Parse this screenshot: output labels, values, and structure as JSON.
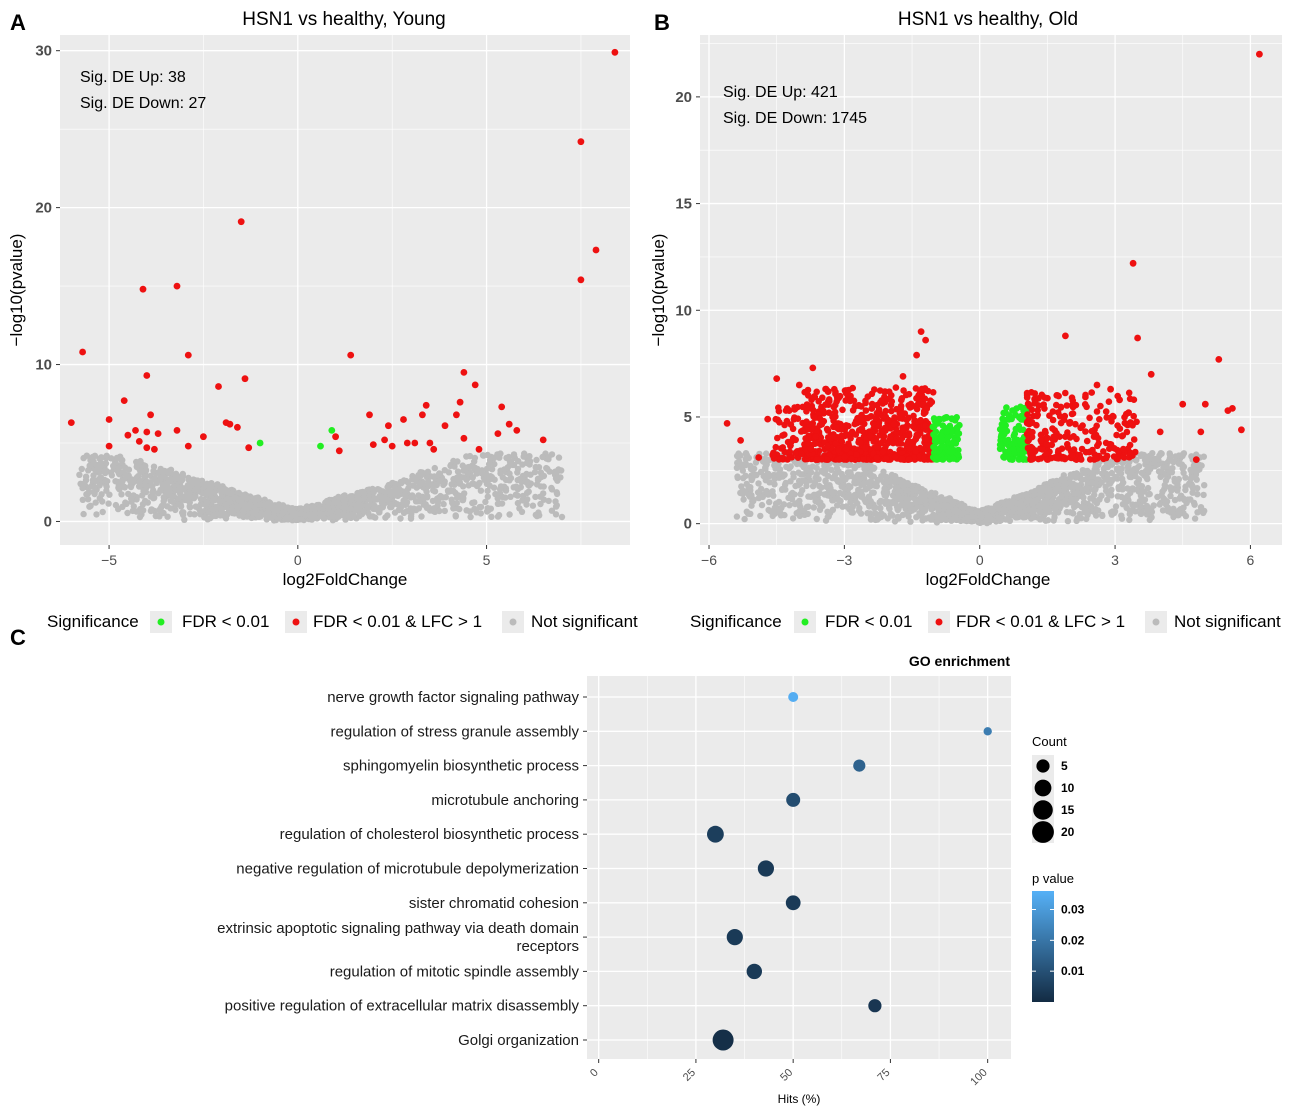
{
  "chart_data": [
    {
      "panel": "A",
      "type": "scatter",
      "title": "HSN1 vs healthy, Young",
      "xlabel": "log2FoldChange",
      "ylabel": "−log10(pvalue)",
      "xlim": [
        -6.3,
        8.8
      ],
      "ylim": [
        -1.5,
        31
      ],
      "xticks": [
        -5,
        0,
        5
      ],
      "yticks": [
        0,
        10,
        20,
        30
      ],
      "grid": true,
      "annotations": [
        "Sig. DE Up: 38",
        "Sig. DE Down: 27"
      ],
      "legend": {
        "title": "Significance",
        "placement": "bottom",
        "entries": [
          {
            "label": "FDR < 0.01",
            "color": "#22ee22"
          },
          {
            "label": "FDR < 0.01 & LFC > 1",
            "color": "#ee1111"
          },
          {
            "label": "Not significant",
            "color": "#bbbbbb"
          }
        ]
      },
      "series": [
        {
          "group": "FDR < 0.01 & LFC > 1",
          "color": "#ee1111",
          "points": [
            [
              8.4,
              29.9
            ],
            [
              7.5,
              24.2
            ],
            [
              7.9,
              17.3
            ],
            [
              7.5,
              15.4
            ],
            [
              -1.5,
              19.1
            ],
            [
              -4.1,
              14.8
            ],
            [
              -3.2,
              15.0
            ],
            [
              -5.7,
              10.8
            ],
            [
              -2.9,
              10.6
            ],
            [
              1.4,
              10.6
            ],
            [
              -4.0,
              9.3
            ],
            [
              -1.4,
              9.1
            ],
            [
              -2.1,
              8.6
            ],
            [
              4.4,
              9.5
            ],
            [
              4.7,
              8.7
            ],
            [
              -6.0,
              6.3
            ],
            [
              -5.0,
              6.5
            ],
            [
              -4.6,
              7.7
            ],
            [
              -4.3,
              5.8
            ],
            [
              -4.5,
              5.5
            ],
            [
              -4.2,
              5.1
            ],
            [
              -4.0,
              5.7
            ],
            [
              -3.9,
              6.8
            ],
            [
              -3.7,
              5.6
            ],
            [
              -3.8,
              4.6
            ],
            [
              -4.0,
              4.7
            ],
            [
              -5.0,
              4.8
            ],
            [
              -3.2,
              5.8
            ],
            [
              -2.9,
              4.8
            ],
            [
              -2.5,
              5.4
            ],
            [
              -1.9,
              6.3
            ],
            [
              -1.8,
              6.2
            ],
            [
              -1.6,
              6.0
            ],
            [
              -1.3,
              4.7
            ],
            [
              1.0,
              5.4
            ],
            [
              1.1,
              4.5
            ],
            [
              1.9,
              6.8
            ],
            [
              2.0,
              4.9
            ],
            [
              2.3,
              5.2
            ],
            [
              2.4,
              6.1
            ],
            [
              2.5,
              4.8
            ],
            [
              2.8,
              6.5
            ],
            [
              2.9,
              5.0
            ],
            [
              3.1,
              5.0
            ],
            [
              3.3,
              6.8
            ],
            [
              3.4,
              7.4
            ],
            [
              3.5,
              5.0
            ],
            [
              3.6,
              4.6
            ],
            [
              3.9,
              6.1
            ],
            [
              4.3,
              7.6
            ],
            [
              4.2,
              6.8
            ],
            [
              4.4,
              5.3
            ],
            [
              4.8,
              4.6
            ],
            [
              5.3,
              5.6
            ],
            [
              5.4,
              7.3
            ],
            [
              5.6,
              6.2
            ],
            [
              5.8,
              5.8
            ],
            [
              6.5,
              5.2
            ]
          ]
        },
        {
          "group": "FDR < 0.01",
          "color": "#22ee22",
          "points": [
            [
              -1.0,
              5.0
            ],
            [
              0.9,
              5.8
            ],
            [
              0.6,
              4.8
            ]
          ]
        }
      ]
    },
    {
      "panel": "B",
      "type": "scatter",
      "title": "HSN1 vs healthy, Old",
      "xlabel": "log2FoldChange",
      "ylabel": "−log10(pvalue)",
      "xlim": [
        -6.2,
        6.7
      ],
      "ylim": [
        -1.0,
        22.9
      ],
      "xticks": [
        -6,
        -3,
        0,
        3,
        6
      ],
      "yticks": [
        0,
        5,
        10,
        15,
        20
      ],
      "grid": true,
      "annotations": [
        "Sig. DE Up: 421",
        "Sig. DE Down: 1745"
      ],
      "legend": {
        "title": "Significance",
        "placement": "bottom",
        "entries": [
          {
            "label": "FDR < 0.01",
            "color": "#22ee22"
          },
          {
            "label": "FDR < 0.01 & LFC > 1",
            "color": "#ee1111"
          },
          {
            "label": "Not significant",
            "color": "#bbbbbb"
          }
        ]
      },
      "series": [
        {
          "group": "FDR < 0.01 & LFC > 1",
          "color": "#ee1111",
          "points": [
            [
              6.2,
              22.0
            ],
            [
              3.4,
              12.2
            ],
            [
              3.5,
              8.7
            ],
            [
              1.9,
              8.8
            ],
            [
              -1.3,
              9.0
            ],
            [
              -1.2,
              8.6
            ],
            [
              -1.4,
              7.9
            ],
            [
              3.8,
              7.0
            ],
            [
              5.3,
              7.7
            ],
            [
              -3.7,
              7.3
            ],
            [
              -4.5,
              6.8
            ],
            [
              -5.6,
              4.7
            ],
            [
              -5.3,
              3.9
            ],
            [
              -4.9,
              3.1
            ],
            [
              -4.7,
              4.9
            ],
            [
              -4.0,
              6.5
            ],
            [
              -1.7,
              6.9
            ],
            [
              5.8,
              4.4
            ],
            [
              5.6,
              5.4
            ],
            [
              5.5,
              5.3
            ],
            [
              5.0,
              5.6
            ],
            [
              4.5,
              5.6
            ],
            [
              4.9,
              4.3
            ],
            [
              4.8,
              3.0
            ],
            [
              4.0,
              4.3
            ],
            [
              2.6,
              6.5
            ],
            [
              2.9,
              6.3
            ],
            [
              3.1,
              5.8
            ],
            [
              3.3,
              5.2
            ]
          ]
        },
        {
          "group": "FDR < 0.01",
          "color": "#22ee22",
          "points": []
        }
      ]
    },
    {
      "panel": "C",
      "type": "scatter",
      "title": "GO enrichment",
      "xlabel": "Hits (%)",
      "ylabel": "",
      "xlim": [
        -3,
        106
      ],
      "xticks": [
        0,
        25,
        50,
        75,
        100
      ],
      "grid": true,
      "size_legend": {
        "title": "Count",
        "values": [
          5,
          10,
          15,
          20
        ]
      },
      "color_legend": {
        "title": "p value",
        "ticks": [
          0.03,
          0.02,
          0.01
        ],
        "low_color": "#132b43",
        "high_color": "#56b1f7",
        "range": [
          0.0,
          0.036
        ]
      },
      "terms": [
        {
          "label": "nerve growth factor signaling pathway",
          "hits": 50,
          "count": 2,
          "p": 0.035
        },
        {
          "label": "regulation of stress granule assembly",
          "hits": 100,
          "count": 1,
          "p": 0.022
        },
        {
          "label": "sphingomyelin biosynthetic process",
          "hits": 67,
          "count": 4,
          "p": 0.015
        },
        {
          "label": "microtubule anchoring",
          "hits": 50,
          "count": 6,
          "p": 0.009
        },
        {
          "label": "regulation of cholesterol biosynthetic process",
          "hits": 30,
          "count": 10,
          "p": 0.005
        },
        {
          "label": "negative regulation of microtubule depolymerization",
          "hits": 43,
          "count": 9,
          "p": 0.004
        },
        {
          "label": "sister chromatid cohesion",
          "hits": 50,
          "count": 7,
          "p": 0.004
        },
        {
          "label": "extrinsic apoptotic signaling pathway via death domain receptors",
          "label_lines": [
            "extrinsic apoptotic signaling pathway via death domain",
            "receptors"
          ],
          "hits": 35,
          "count": 9,
          "p": 0.004
        },
        {
          "label": "regulation of mitotic spindle assembly",
          "hits": 40,
          "count": 8,
          "p": 0.004
        },
        {
          "label": "positive regulation of extracellular matrix disassembly",
          "hits": 71,
          "count": 5,
          "p": 0.003
        },
        {
          "label": "Golgi organization",
          "hits": 32,
          "count": 18,
          "p": 0.001
        }
      ]
    }
  ]
}
